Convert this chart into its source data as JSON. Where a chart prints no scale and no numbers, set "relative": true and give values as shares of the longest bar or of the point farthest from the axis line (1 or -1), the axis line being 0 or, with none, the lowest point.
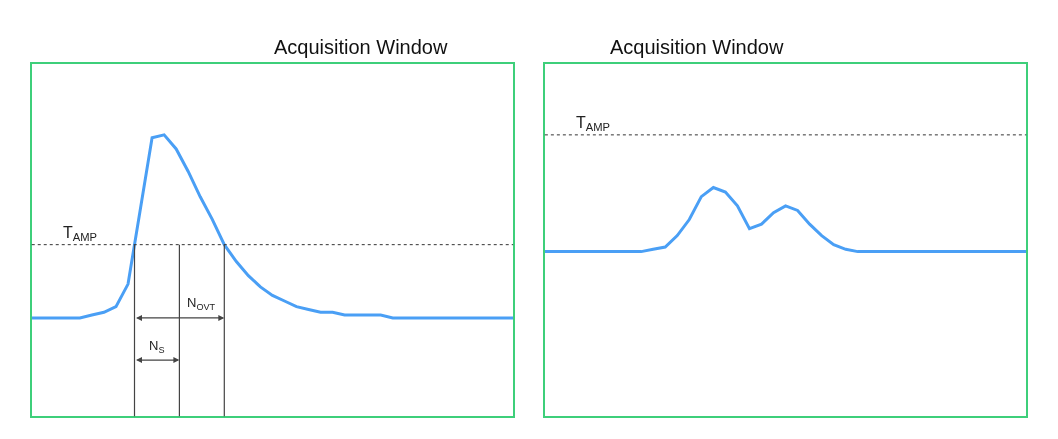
{
  "chart_data": [
    {
      "type": "line",
      "title": "Acquisition Window",
      "relative": true,
      "line_style": "solid",
      "categories": [
        null,
        null,
        null,
        null,
        null,
        null,
        null,
        null,
        null,
        null,
        null,
        null,
        null,
        null,
        null,
        null,
        null,
        null,
        null,
        null,
        null,
        null,
        null,
        null,
        null,
        null,
        null,
        null,
        null,
        null,
        null,
        null,
        null,
        null,
        null,
        null,
        null,
        null,
        null,
        null,
        null
      ],
      "series": [
        {
          "color": "#4a9ff5",
          "values": [
            0.35,
            0.35,
            0.35,
            0.35,
            0.35,
            0.36,
            0.37,
            0.39,
            0.47,
            0.73,
            0.99,
            1.0,
            0.95,
            0.87,
            0.78,
            0.7,
            0.61,
            0.55,
            0.5,
            0.46,
            0.43,
            0.41,
            0.39,
            0.38,
            0.37,
            0.37,
            0.36,
            0.36,
            0.36,
            0.36,
            0.35,
            0.35,
            0.35,
            0.35,
            0.35,
            0.35,
            0.35,
            0.35,
            0.35,
            0.35,
            0.35
          ]
        }
      ],
      "ref_lines": [
        {
          "axis": "y",
          "value": 0.61,
          "label": "T$_{AMP}$",
          "color": "#333333",
          "line_style": "dotted"
        }
      ],
      "annotations": [
        "N$_{S}$",
        "N$_{OVT}$"
      ]
    },
    {
      "type": "line",
      "title": "Acquisition Window",
      "relative": true,
      "line_style": "solid",
      "categories": [
        null,
        null,
        null,
        null,
        null,
        null,
        null,
        null,
        null,
        null,
        null,
        null,
        null,
        null,
        null,
        null,
        null,
        null,
        null,
        null,
        null,
        null,
        null,
        null,
        null,
        null,
        null,
        null,
        null,
        null,
        null,
        null,
        null,
        null,
        null,
        null,
        null,
        null,
        null,
        null,
        null
      ],
      "series": [
        {
          "color": "#4a9ff5",
          "values": [
            0.72,
            0.72,
            0.72,
            0.72,
            0.72,
            0.72,
            0.72,
            0.72,
            0.72,
            0.73,
            0.74,
            0.79,
            0.86,
            0.96,
            1.0,
            0.98,
            0.92,
            0.82,
            0.84,
            0.89,
            0.92,
            0.9,
            0.84,
            0.79,
            0.75,
            0.73,
            0.72,
            0.72,
            0.72,
            0.72,
            0.72,
            0.72,
            0.72,
            0.72,
            0.72,
            0.72,
            0.72,
            0.72,
            0.72,
            0.72,
            0.72
          ]
        }
      ],
      "ref_lines": [
        {
          "axis": "y",
          "value": 1.23,
          "label": "T$_{AMP}$",
          "color": "#333333",
          "line_style": "dotted"
        }
      ]
    }
  ]
}
